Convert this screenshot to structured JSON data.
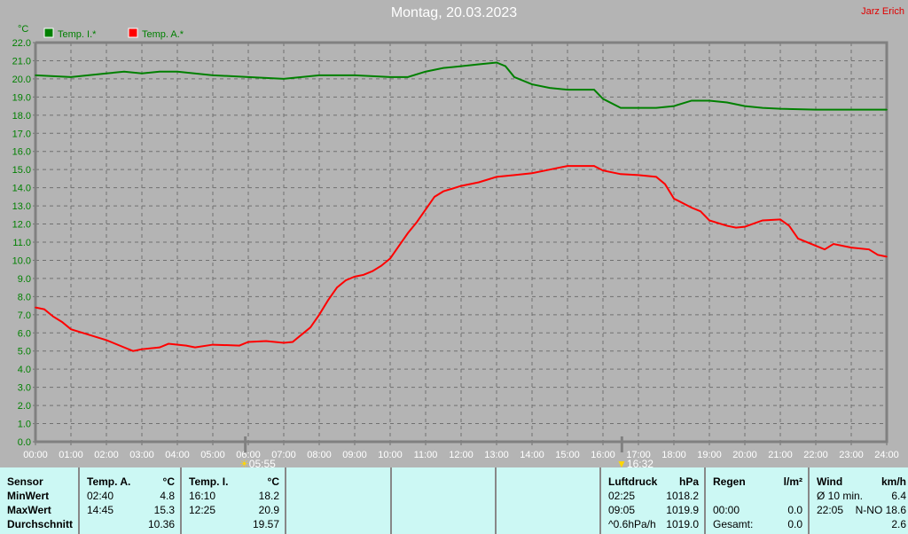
{
  "title": "Montag, 20.03.2023",
  "author": "Jarz Erich",
  "chart_data": {
    "type": "line",
    "ylabel": "°C",
    "ylim": [
      0,
      22
    ],
    "yticks": [
      "0.0",
      "1.0",
      "2.0",
      "3.0",
      "4.0",
      "5.0",
      "6.0",
      "7.0",
      "8.0",
      "9.0",
      "10.0",
      "11.0",
      "12.0",
      "13.0",
      "14.0",
      "15.0",
      "16.0",
      "17.0",
      "18.0",
      "19.0",
      "20.0",
      "21.0",
      "22.0"
    ],
    "xlim": [
      "00:00",
      "24:00"
    ],
    "xticks": [
      "00:00",
      "01:00",
      "02:00",
      "03:00",
      "04:00",
      "05:00",
      "06:00",
      "07:00",
      "08:00",
      "09:00",
      "10:00",
      "11:00",
      "12:00",
      "13:00",
      "14:00",
      "15:00",
      "16:00",
      "17:00",
      "18:00",
      "19:00",
      "20:00",
      "21:00",
      "22:00",
      "23:00",
      "24:00"
    ],
    "grid": true,
    "legend": "top-left",
    "series": [
      {
        "name": "Temp. I.*",
        "color": "#008000",
        "x": [
          "00:00",
          "01:00",
          "02:00",
          "02:30",
          "03:00",
          "03:30",
          "04:00",
          "05:00",
          "06:00",
          "07:00",
          "08:00",
          "09:00",
          "10:00",
          "10:30",
          "11:00",
          "11:30",
          "12:00",
          "12:30",
          "13:00",
          "13:15",
          "13:30",
          "14:00",
          "14:30",
          "15:00",
          "15:45",
          "16:00",
          "16:30",
          "17:00",
          "17:30",
          "18:00",
          "18:30",
          "19:00",
          "19:30",
          "20:00",
          "20:30",
          "21:00",
          "22:00",
          "24:00"
        ],
        "values": [
          20.2,
          20.1,
          20.3,
          20.4,
          20.3,
          20.4,
          20.4,
          20.2,
          20.1,
          20.0,
          20.2,
          20.2,
          20.1,
          20.1,
          20.4,
          20.6,
          20.7,
          20.8,
          20.9,
          20.7,
          20.1,
          19.7,
          19.5,
          19.4,
          19.4,
          18.9,
          18.4,
          18.4,
          18.4,
          18.5,
          18.8,
          18.8,
          18.7,
          18.5,
          18.4,
          18.35,
          18.3,
          18.3
        ]
      },
      {
        "name": "Temp. A.*",
        "color": "#ff0000",
        "x": [
          "00:00",
          "00:15",
          "00:30",
          "00:45",
          "01:00",
          "01:30",
          "02:00",
          "02:30",
          "02:45",
          "03:00",
          "03:30",
          "03:45",
          "04:15",
          "04:30",
          "05:00",
          "05:45",
          "06:00",
          "06:30",
          "07:00",
          "07:15",
          "07:30",
          "07:45",
          "08:00",
          "08:15",
          "08:30",
          "08:45",
          "09:00",
          "09:15",
          "09:30",
          "09:45",
          "10:00",
          "10:15",
          "10:30",
          "10:45",
          "11:00",
          "11:15",
          "11:30",
          "12:00",
          "12:30",
          "13:00",
          "13:30",
          "14:00",
          "14:30",
          "15:00",
          "15:45",
          "16:00",
          "16:30",
          "17:00",
          "17:30",
          "17:45",
          "18:00",
          "18:30",
          "18:45",
          "19:00",
          "19:30",
          "19:45",
          "20:00",
          "20:30",
          "21:00",
          "21:15",
          "21:30",
          "22:00",
          "22:15",
          "22:30",
          "23:00",
          "23:30",
          "23:45",
          "24:00"
        ],
        "values": [
          7.4,
          7.3,
          6.9,
          6.6,
          6.2,
          5.9,
          5.6,
          5.2,
          5.0,
          5.1,
          5.2,
          5.4,
          5.3,
          5.2,
          5.35,
          5.3,
          5.5,
          5.55,
          5.45,
          5.5,
          5.9,
          6.3,
          7.0,
          7.8,
          8.5,
          8.9,
          9.1,
          9.2,
          9.4,
          9.7,
          10.1,
          10.8,
          11.5,
          12.1,
          12.8,
          13.5,
          13.8,
          14.1,
          14.3,
          14.6,
          14.7,
          14.8,
          15.0,
          15.2,
          15.2,
          14.95,
          14.75,
          14.7,
          14.6,
          14.2,
          13.4,
          12.9,
          12.7,
          12.2,
          11.9,
          11.8,
          11.85,
          12.2,
          12.25,
          11.9,
          11.2,
          10.8,
          10.6,
          10.9,
          10.7,
          10.6,
          10.3,
          10.2
        ]
      }
    ],
    "annotations": {
      "sunrise": "05:55",
      "sunset": "16:32"
    }
  },
  "table": {
    "sensor": {
      "header": "Sensor",
      "rows": [
        "MinWert",
        "MaxWert",
        "Durchschnitt"
      ]
    },
    "temp_a": {
      "header": "Temp. A.",
      "unit": "°C",
      "min_time": "02:40",
      "min": "4.8",
      "max_time": "14:45",
      "max": "15.3",
      "avg": "10.36"
    },
    "temp_i": {
      "header": "Temp. I.",
      "unit": "°C",
      "min_time": "16:10",
      "min": "18.2",
      "max_time": "12:25",
      "max": "20.9",
      "avg": "19.57"
    },
    "pressure": {
      "header": "Luftdruck",
      "unit": "hPa",
      "r1a": "02:25",
      "r1b": "1018.2",
      "r2a": "09:05",
      "r2b": "1019.9",
      "r3a": "^0.6hPa/h",
      "r3b": "1019.0"
    },
    "rain": {
      "header": "Regen",
      "unit": "l/m²",
      "r2a": "00:00",
      "r2b": "0.0",
      "r3a": "Gesamt:",
      "r3b": "0.0"
    },
    "wind": {
      "header": "Wind",
      "unit": "km/h",
      "r1a": "Ø 10 min.",
      "r1b": "6.4",
      "r2a": "22:05",
      "r2b": "N-NO 18.6",
      "r3b": "2.6"
    }
  }
}
